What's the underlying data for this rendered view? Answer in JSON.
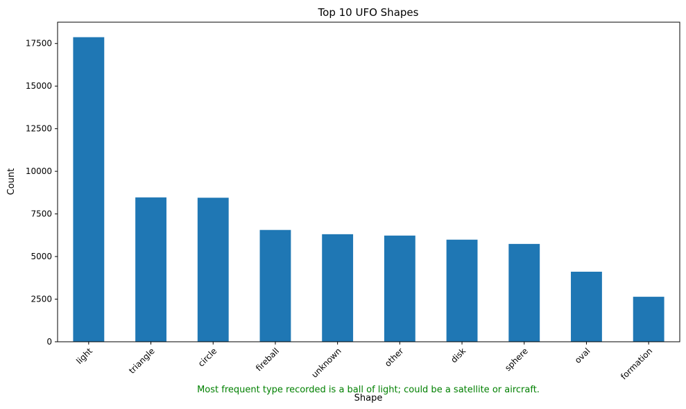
{
  "chart_data": {
    "type": "bar",
    "title": "Top 10 UFO Shapes",
    "xlabel": "Shape",
    "ylabel": "Count",
    "categories": [
      "light",
      "triangle",
      "circle",
      "fireball",
      "unknown",
      "other",
      "disk",
      "sphere",
      "oval",
      "formation"
    ],
    "values": [
      17870,
      8470,
      8450,
      6560,
      6310,
      6230,
      5990,
      5740,
      4110,
      2640
    ],
    "ylim": [
      0,
      18750
    ],
    "yticks": [
      0,
      2500,
      5000,
      7500,
      10000,
      12500,
      15000,
      17500
    ],
    "grid": false,
    "legend": "none",
    "bar_color": "#1f77b4",
    "annotation": {
      "text": "Most frequent type recorded is a ball of light; could be a satellite or aircraft.",
      "color": "#008000"
    }
  }
}
